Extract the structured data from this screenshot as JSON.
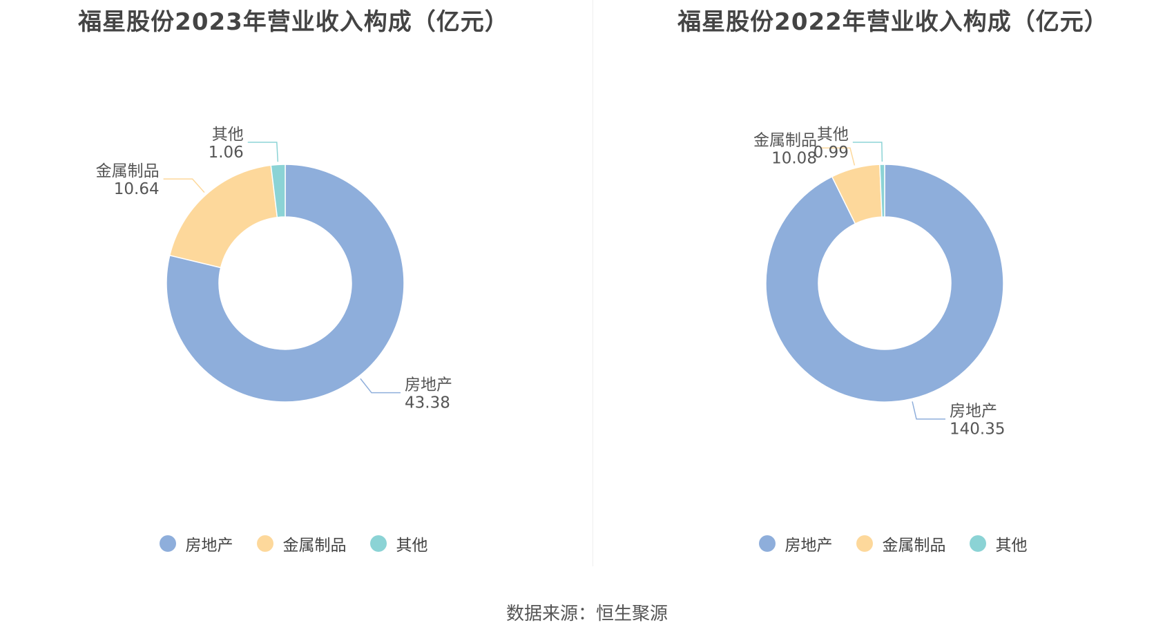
{
  "source_label": "数据来源：恒生聚源",
  "chart_data": [
    {
      "type": "pie",
      "variant": "donut",
      "title": "福星股份2023年营业收入构成（亿元）",
      "categories": [
        "房地产",
        "金属制品",
        "其他"
      ],
      "values": [
        43.38,
        10.64,
        1.06
      ],
      "colors": [
        "#8eaedb",
        "#fdd89b",
        "#8bd3d5"
      ],
      "legend": "bottom"
    },
    {
      "type": "pie",
      "variant": "donut",
      "title": "福星股份2022年营业收入构成（亿元）",
      "categories": [
        "房地产",
        "金属制品",
        "其他"
      ],
      "values": [
        140.35,
        10.08,
        0.99
      ],
      "colors": [
        "#8eaedb",
        "#fdd89b",
        "#8bd3d5"
      ],
      "legend": "bottom"
    }
  ]
}
